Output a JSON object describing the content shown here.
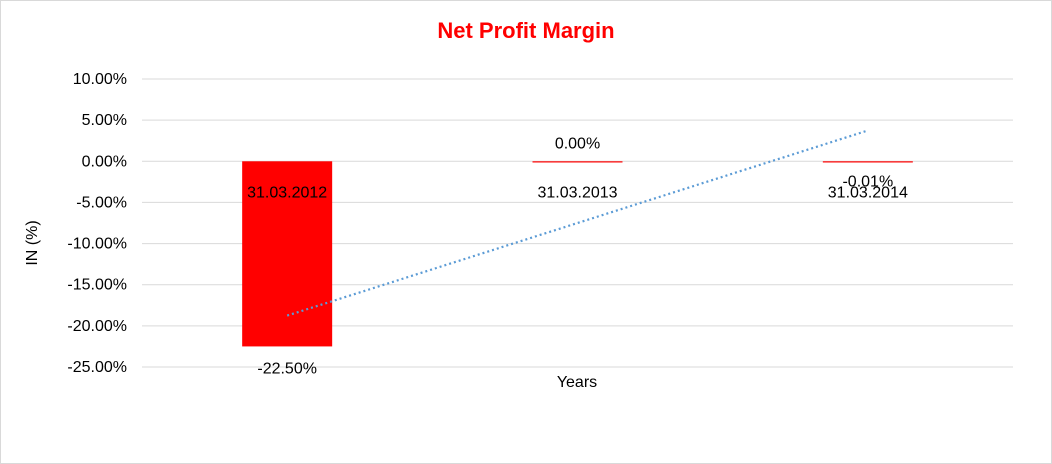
{
  "chart_data": {
    "type": "bar",
    "title": "Net Profit Margin",
    "xlabel": "Years",
    "ylabel": "IN (%)",
    "categories": [
      "31.03.2012",
      "31.03.2013",
      "31.03.2014"
    ],
    "series": [
      {
        "values": [
          -22.5,
          0.0,
          -0.01
        ],
        "data_labels": [
          "-22.50%",
          "0.00%",
          "-0.01%"
        ],
        "color": "#ff0000"
      }
    ],
    "trendline": {
      "type": "linear",
      "style": "dotted",
      "color": "#5b9bd5"
    },
    "ylim": [
      -25,
      10
    ],
    "y_ticks": [
      10,
      5,
      0,
      -5,
      -10,
      -15,
      -20,
      -25
    ],
    "y_tick_labels": [
      "10.00%",
      "5.00%",
      "0.00%",
      "-5.00%",
      "-10.00%",
      "-15.00%",
      "-20.00%",
      "-25.00%"
    ],
    "grid": true,
    "legend": "none",
    "colors": {
      "title": "#ff0000",
      "bar": "#ff0000",
      "trendline": "#5b9bd5",
      "grid": "#d9d9d9"
    }
  }
}
